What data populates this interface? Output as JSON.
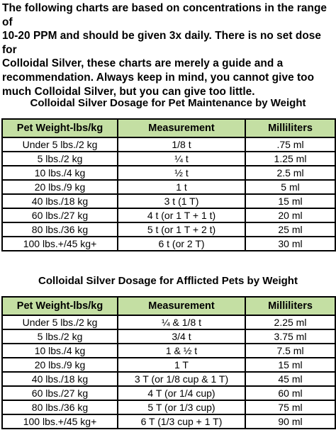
{
  "intro": {
    "lines": [
      "The following charts are based on concentrations in the range of",
      "10-20 PPM and should be given 3x daily. There is no set dose for",
      "Colloidal Silver, these charts are merely a guide and a",
      "recommendation. Always keep in mind, you cannot give too",
      "much Colloidal Silver, but you can give too little."
    ]
  },
  "tables": [
    {
      "title": "Colloidal Silver Dosage for Pet Maintenance by Weight",
      "headers": [
        "Pet Weight-lbs/kg",
        "Measurement",
        "Milliliters"
      ],
      "rows": [
        [
          "Under 5 lbs./2 kg",
          "1/8 t",
          ".75 ml"
        ],
        [
          "5 lbs./2 kg",
          "¼ t",
          "1.25 ml"
        ],
        [
          "10 lbs./4 kg",
          "½ t",
          "2.5 ml"
        ],
        [
          "20 lbs./9 kg",
          "1 t",
          "5 ml"
        ],
        [
          "40 lbs./18 kg",
          "3 t (1 T)",
          "15 ml"
        ],
        [
          "60 lbs./27 kg",
          "4 t (or 1 T + 1 t)",
          "20 ml"
        ],
        [
          "80 lbs./36 kg",
          "5 t (or 1 T + 2 t)",
          "25 ml"
        ],
        [
          "100 lbs.+/45 kg+",
          "6 t (or 2 T)",
          "30 ml"
        ]
      ]
    },
    {
      "title": "Colloidal Silver Dosage for Afflicted Pets by Weight",
      "headers": [
        "Pet Weight-lbs/kg",
        "Measurement",
        "Milliliters"
      ],
      "rows": [
        [
          "Under 5 lbs./2 kg",
          "¼ & 1/8 t",
          "2.25 ml"
        ],
        [
          "5 lbs./2 kg",
          "3/4 t",
          "3.75 ml"
        ],
        [
          "10 lbs./4 kg",
          "1 & ½ t",
          "7.5 ml"
        ],
        [
          "20 lbs./9 kg",
          "1 T",
          "15 ml"
        ],
        [
          "40 lbs./18 kg",
          "3 T (or 1/8 cup & 1 T)",
          "45 ml"
        ],
        [
          "60 lbs./27 kg",
          "4 T (or 1/4 cup)",
          "60 ml"
        ],
        [
          "80 lbs./36 kg",
          "5 T (or 1/3 cup)",
          "75 ml"
        ],
        [
          "100 lbs.+/45 kg+",
          "6 T (1/3 cup + 1 T)",
          "90 ml"
        ]
      ]
    }
  ],
  "colors": {
    "header_bg": "#c4dfa3",
    "border": "#000000"
  }
}
